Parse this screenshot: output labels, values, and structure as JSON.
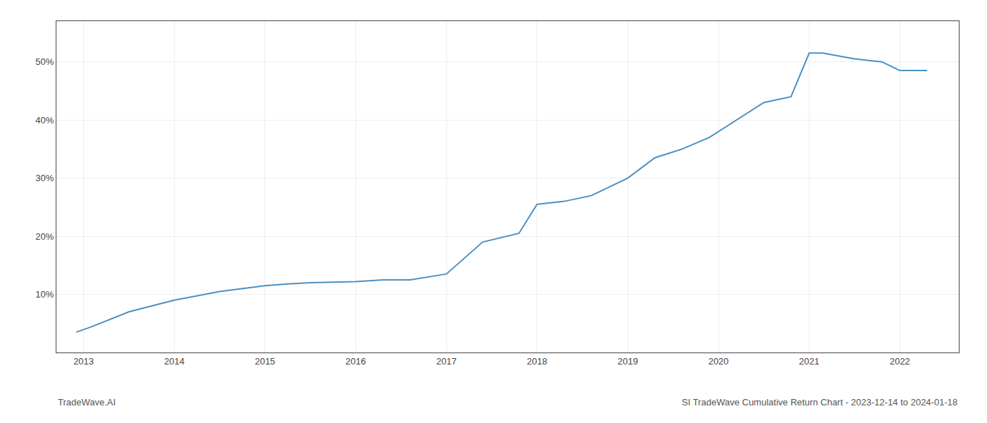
{
  "chart_data": {
    "type": "line",
    "x": [
      2012.92,
      2013.1,
      2013.5,
      2014.0,
      2014.5,
      2015.0,
      2015.25,
      2015.5,
      2016.0,
      2016.3,
      2016.6,
      2017.0,
      2017.4,
      2017.8,
      2018.0,
      2018.3,
      2018.6,
      2019.0,
      2019.3,
      2019.6,
      2019.9,
      2020.2,
      2020.5,
      2020.8,
      2021.0,
      2021.15,
      2021.5,
      2021.8,
      2022.0,
      2022.3
    ],
    "values": [
      3.5,
      4.5,
      7.0,
      9.0,
      10.5,
      11.5,
      11.8,
      12.0,
      12.2,
      12.5,
      12.5,
      13.5,
      19.0,
      20.5,
      25.5,
      26.0,
      27.0,
      30.0,
      33.5,
      35.0,
      37.0,
      40.0,
      43.0,
      44.0,
      51.5,
      51.5,
      50.5,
      50.0,
      48.5,
      48.5
    ],
    "color": "#4a90c4",
    "xlim": [
      2012.7,
      2022.65
    ],
    "ylim": [
      0,
      57
    ],
    "xticks": [
      2013,
      2014,
      2015,
      2016,
      2017,
      2018,
      2019,
      2020,
      2021,
      2022
    ],
    "yticks": [
      {
        "value": 10,
        "label": "10%"
      },
      {
        "value": 20,
        "label": "20%"
      },
      {
        "value": 30,
        "label": "30%"
      },
      {
        "value": 40,
        "label": "40%"
      },
      {
        "value": 50,
        "label": "50%"
      }
    ],
    "grid": true,
    "annotations": [
      "TradeWave.AI",
      "SI TradeWave Cumulative Return Chart - 2023-12-14 to 2024-01-18"
    ]
  }
}
